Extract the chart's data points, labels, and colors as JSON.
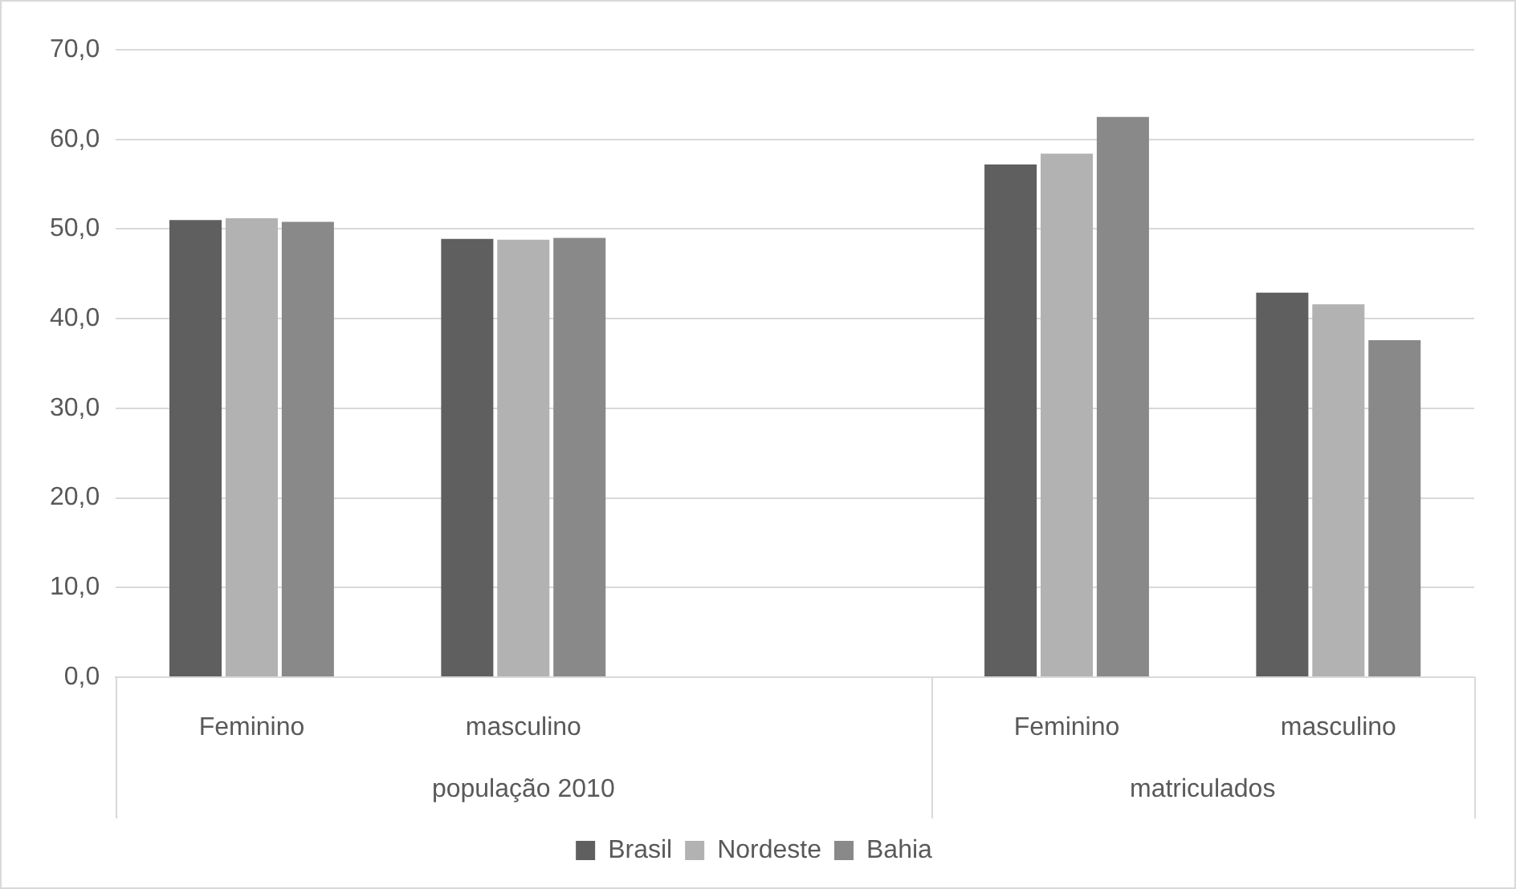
{
  "chart_data": {
    "type": "bar",
    "categories": [
      "Feminino",
      "masculino",
      null,
      "Feminino",
      "masculino"
    ],
    "series": [
      {
        "name": "Brasil",
        "color": "#5f5f5f",
        "values": [
          51.0,
          48.9,
          null,
          57.2,
          42.9
        ]
      },
      {
        "name": "Nordeste",
        "color": "#b2b2b2",
        "values": [
          51.2,
          48.8,
          null,
          58.4,
          41.6
        ]
      },
      {
        "name": "Bahia",
        "color": "#898989",
        "values": [
          50.8,
          49.0,
          null,
          62.5,
          37.6
        ]
      }
    ],
    "annotations": [
      "população 2010",
      "matriculados"
    ],
    "ylim": [
      0,
      70
    ],
    "yticks": [
      {
        "value": 0,
        "label": "0,0"
      },
      {
        "value": 10,
        "label": "10,0"
      },
      {
        "value": 20,
        "label": "20,0"
      },
      {
        "value": 30,
        "label": "30,0"
      },
      {
        "value": 40,
        "label": "40,0"
      },
      {
        "value": 50,
        "label": "50,0"
      },
      {
        "value": 60,
        "label": "60,0"
      },
      {
        "value": 70,
        "label": "70,0"
      }
    ],
    "grid": "y",
    "legend": "bottom"
  }
}
